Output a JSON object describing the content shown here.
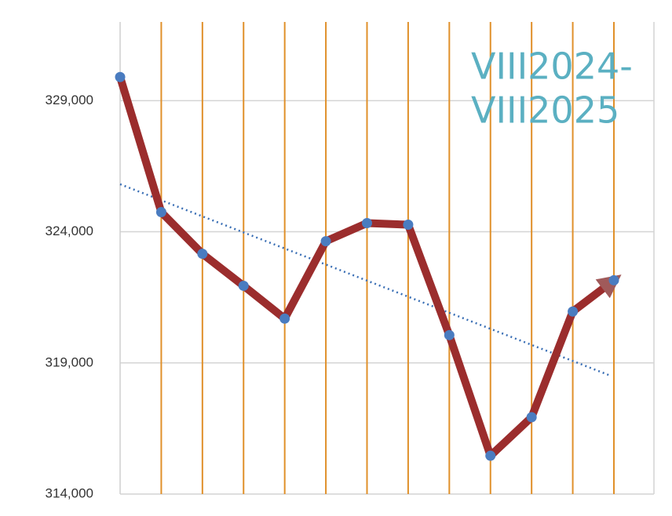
{
  "chart_data": {
    "type": "line",
    "title": [
      "VIII2024-",
      "VIII2025"
    ],
    "categories": [
      null,
      null,
      null,
      null,
      null,
      null,
      null,
      null,
      null,
      null,
      null,
      null,
      null
    ],
    "series": [
      {
        "color": "#9b2d2d",
        "marker_color": "#4a7cc0",
        "values": [
          329900,
          324750,
          323160,
          321940,
          320690,
          323640,
          324330,
          324270,
          320060,
          315460,
          316930,
          320960,
          322150
        ]
      }
    ],
    "ylim": [
      314000,
      332000
    ],
    "yticks": [
      {
        "value": 314000,
        "label": "314,000"
      },
      {
        "value": 319000,
        "label": "319,000"
      },
      {
        "value": 324000,
        "label": "324,000"
      },
      {
        "value": 329000,
        "label": "329,000"
      }
    ],
    "grid": true,
    "category_grid_color": "#e0902a",
    "trendline": true,
    "trendline_color": "#3a6fb5",
    "end_arrow": true
  }
}
